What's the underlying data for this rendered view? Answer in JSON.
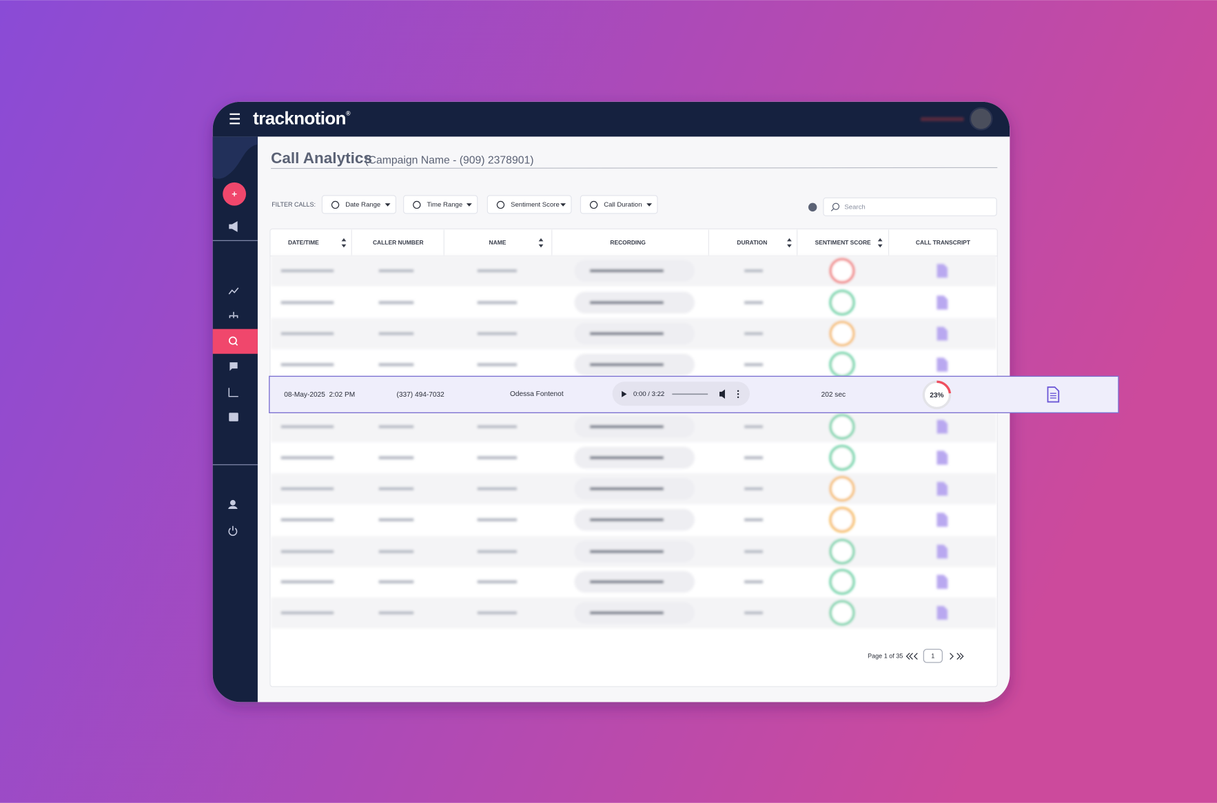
{
  "header": {
    "logo": "tracknotion",
    "logo_mark": "®"
  },
  "page": {
    "title": "Call Analytics",
    "subtitle": "(Campaign Name - (909) 2378901)"
  },
  "filters": {
    "label": "FILTER CALLS:",
    "items": [
      "Date Range",
      "Time Range",
      "Sentiment Score",
      "Call Duration"
    ],
    "search_placeholder": "Search"
  },
  "table": {
    "columns": [
      "DATE/TIME",
      "CALLER NUMBER",
      "NAME",
      "RECORDING",
      "DURATION",
      "SENTIMENT SCORE",
      "CALL TRANSCRIPT"
    ],
    "highlighted_row": {
      "date_time": "08-May-2025  2:02 PM",
      "caller_number": "(337) 494-7032",
      "name": "Odessa Fontenot",
      "recording_time": "0:00 / 3:22",
      "duration": "202 sec",
      "sentiment": {
        "value": 23,
        "label": "23%"
      }
    }
  },
  "pagination": {
    "summary": "Page 1 of 35",
    "current_page": 1
  }
}
